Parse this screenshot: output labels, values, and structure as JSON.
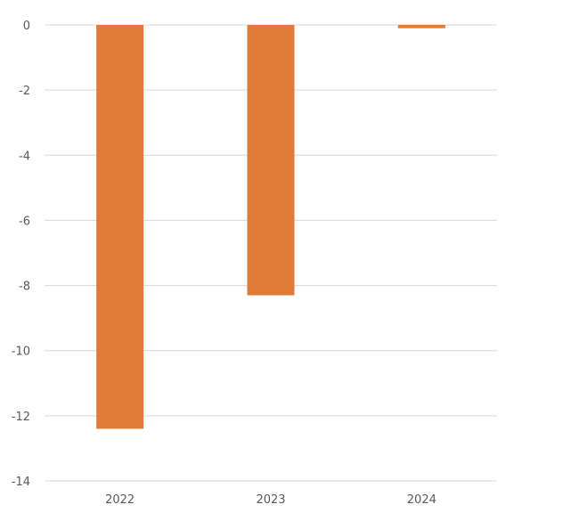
{
  "chart_data": {
    "type": "bar",
    "categories": [
      "2022",
      "2023",
      "2024"
    ],
    "values": [
      -12.4,
      -8.3,
      -0.1
    ],
    "title": "",
    "xlabel": "",
    "ylabel": "",
    "ylim": [
      -14,
      0
    ],
    "yticks": [
      "0",
      "-2",
      "-4",
      "-6",
      "-8",
      "-10",
      "-12",
      "-14"
    ],
    "grid": true,
    "legend": "none",
    "bar_color": "#E07B39",
    "grid_color": "#D9D9D9",
    "tick_color": "#595959"
  }
}
